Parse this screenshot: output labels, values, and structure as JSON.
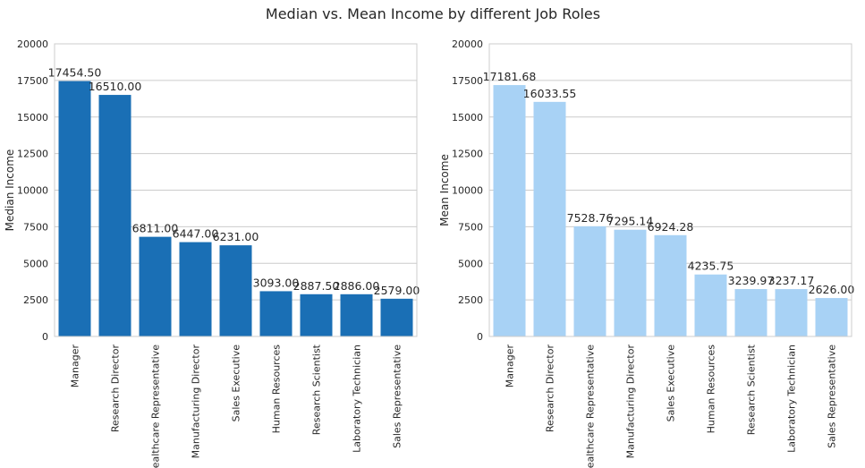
{
  "suptitle": "Median vs. Mean Income by different Job Roles",
  "colors": {
    "median_bar": "#1a6fb5",
    "mean_bar": "#a8d2f5",
    "grid": "#cccccc",
    "frame": "#cccccc"
  },
  "chart_data": [
    {
      "type": "bar",
      "categories": [
        "Manager",
        "Research Director",
        "Healthcare Representative",
        "Manufacturing Director",
        "Sales Executive",
        "Human Resources",
        "Research Scientist",
        "Laboratory Technician",
        "Sales Representative"
      ],
      "values": [
        17454.5,
        16510.0,
        6811.0,
        6447.0,
        6231.0,
        3093.0,
        2887.5,
        2886.0,
        2579.0
      ],
      "value_labels": [
        "17454.50",
        "16510.00",
        "6811.00",
        "6447.00",
        "6231.00",
        "3093.00",
        "2887.50",
        "2886.00",
        "2579.00"
      ],
      "xlabel": "",
      "ylabel": "Median Income",
      "ylim": [
        0,
        20000
      ],
      "yticks": [
        0,
        2500,
        5000,
        7500,
        10000,
        12500,
        15000,
        17500,
        20000
      ],
      "grid": "horizontal",
      "legend": "none"
    },
    {
      "type": "bar",
      "categories": [
        "Manager",
        "Research Director",
        "Healthcare Representative",
        "Manufacturing Director",
        "Sales Executive",
        "Human Resources",
        "Research Scientist",
        "Laboratory Technician",
        "Sales Representative"
      ],
      "values": [
        17181.68,
        16033.55,
        7528.76,
        7295.14,
        6924.28,
        4235.75,
        3239.97,
        3237.17,
        2626.0
      ],
      "value_labels": [
        "17181.68",
        "16033.55",
        "7528.76",
        "7295.14",
        "6924.28",
        "4235.75",
        "3239.97",
        "3237.17",
        "2626.00"
      ],
      "xlabel": "",
      "ylabel": "Mean Income",
      "ylim": [
        0,
        20000
      ],
      "yticks": [
        0,
        2500,
        5000,
        7500,
        10000,
        12500,
        15000,
        17500,
        20000
      ],
      "grid": "horizontal",
      "legend": "none"
    }
  ]
}
